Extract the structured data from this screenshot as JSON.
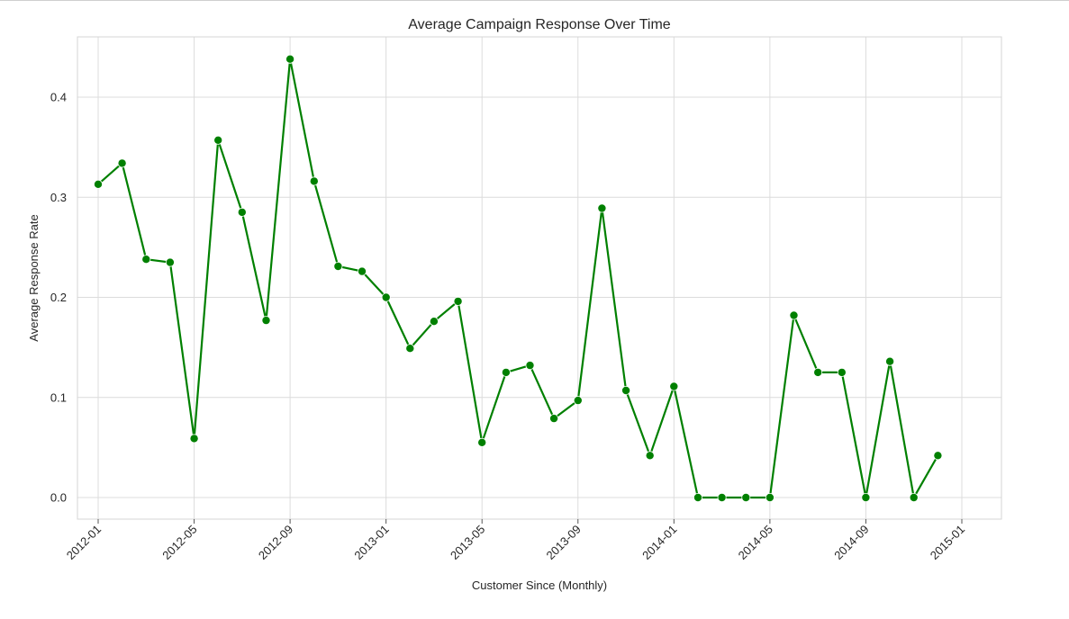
{
  "chart_data": {
    "type": "line",
    "title": "Average Campaign Response Over Time",
    "xlabel": "Customer Since (Monthly)",
    "ylabel": "Average Response Rate",
    "grid": true,
    "x_tick_labels": [
      "2012-01",
      "2012-05",
      "2012-09",
      "2013-01",
      "2013-05",
      "2013-09",
      "2014-01",
      "2014-05",
      "2014-09",
      "2015-01"
    ],
    "y_tick_labels": [
      "0.0",
      "0.1",
      "0.2",
      "0.3",
      "0.4"
    ],
    "y_ticks": [
      0.0,
      0.1,
      0.2,
      0.3,
      0.4
    ],
    "xlim": [
      "2011-11",
      "2015-01"
    ],
    "ylim": [
      -0.022,
      0.46
    ],
    "series": [
      {
        "color": "#008000",
        "x": [
          "2012-01",
          "2012-02",
          "2012-03",
          "2012-04",
          "2012-05",
          "2012-06",
          "2012-07",
          "2012-08",
          "2012-09",
          "2012-10",
          "2012-11",
          "2012-12",
          "2013-01",
          "2013-02",
          "2013-03",
          "2013-04",
          "2013-05",
          "2013-06",
          "2013-07",
          "2013-08",
          "2013-09",
          "2013-10",
          "2013-11",
          "2013-12",
          "2014-01",
          "2014-02",
          "2014-03",
          "2014-04",
          "2014-05",
          "2014-06",
          "2014-07",
          "2014-08",
          "2014-09",
          "2014-10",
          "2014-11",
          "2014-12"
        ],
        "values": [
          0.313,
          0.334,
          0.238,
          0.235,
          0.059,
          0.357,
          0.285,
          0.177,
          0.438,
          0.316,
          0.231,
          0.226,
          0.2,
          0.149,
          0.176,
          0.196,
          0.055,
          0.125,
          0.132,
          0.079,
          0.097,
          0.289,
          0.107,
          0.042,
          0.111,
          0.0,
          0.0,
          0.0,
          0.0,
          0.182,
          0.125,
          0.125,
          0.0,
          0.136,
          0.0,
          0.042
        ]
      }
    ]
  }
}
